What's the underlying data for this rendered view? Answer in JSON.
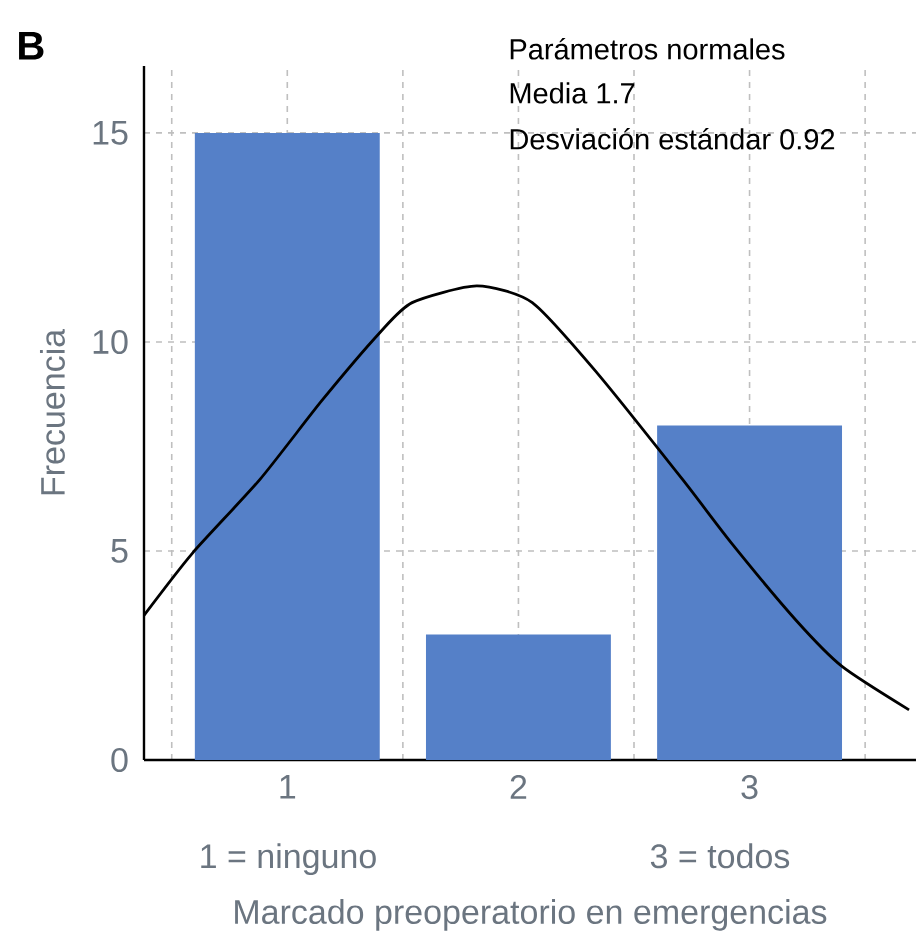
{
  "chart_data": {
    "type": "bar",
    "xlabel": "Marcado preoperatorio en emergencias",
    "ylabel": "Frecuencia",
    "annotations": [
      "B",
      "Parámetros normales",
      "Media 1.7",
      "Desviación estándar 0.92",
      "1 = ninguno",
      "3 = todos"
    ],
    "xlim": [
      0.38,
      3.72
    ],
    "ylim": [
      0,
      16.6
    ],
    "xticks": [
      {
        "value": 0.5,
        "label": null
      },
      1,
      {
        "value": 1.5,
        "label": null
      },
      2,
      {
        "value": 2.5,
        "label": null
      },
      3,
      {
        "value": 3.5,
        "label": null
      }
    ],
    "yticks": [
      0,
      5,
      10,
      15
    ],
    "grid": true,
    "series": [
      {
        "color": "#5580c8",
        "x": [
          1,
          2,
          3
        ],
        "values": [
          15,
          3,
          8
        ]
      },
      {
        "type": "line",
        "color": "#000000",
        "x": [
          0.38,
          0.59,
          0.88,
          1.15,
          1.4,
          1.54,
          1.82,
          2.06,
          2.34,
          2.71,
          2.92,
          3.2,
          3.4,
          3.69
        ],
        "values": [
          3.46,
          4.95,
          6.7,
          8.6,
          10.22,
          10.94,
          11.34,
          10.94,
          9.26,
          6.71,
          5.2,
          3.35,
          2.24,
          1.2
        ]
      }
    ]
  }
}
